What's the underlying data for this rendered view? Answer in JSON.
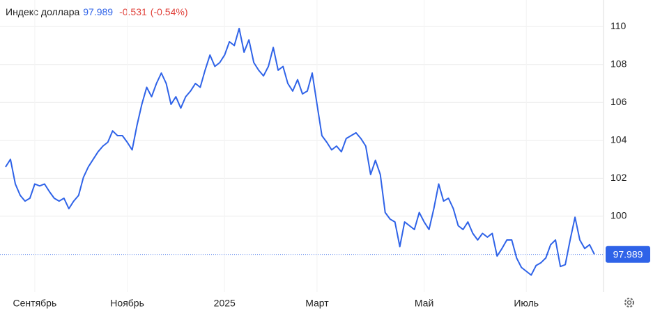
{
  "chart_data": {
    "type": "line",
    "title": "Индекс доллара",
    "change": "-0.531",
    "change_pct": "(-0.54%)",
    "series": [
      {
        "name": "Индекс доллара",
        "color": "#2f63e8",
        "values": [
          102.6,
          103.0,
          101.7,
          101.1,
          100.8,
          100.95,
          101.7,
          101.6,
          101.7,
          101.3,
          100.95,
          100.8,
          100.95,
          100.4,
          100.8,
          101.1,
          102.05,
          102.6,
          103.0,
          103.4,
          103.7,
          103.9,
          104.5,
          104.25,
          104.25,
          103.9,
          103.5,
          104.8,
          105.9,
          106.8,
          106.3,
          107.0,
          107.55,
          107.0,
          105.9,
          106.3,
          105.7,
          106.3,
          106.6,
          107.0,
          106.8,
          107.7,
          108.5,
          107.9,
          108.1,
          108.5,
          109.2,
          109.0,
          109.9,
          108.65,
          109.3,
          108.1,
          107.7,
          107.4,
          107.9,
          108.9,
          107.7,
          107.9,
          107.0,
          106.6,
          107.2,
          106.45,
          106.6,
          107.55,
          105.9,
          104.25,
          103.9,
          103.5,
          103.7,
          103.4,
          104.1,
          104.25,
          104.4,
          104.1,
          103.7,
          102.2,
          102.95,
          102.2,
          100.2,
          99.85,
          99.7,
          98.4,
          99.7,
          99.5,
          99.3,
          100.2,
          99.7,
          99.3,
          100.4,
          101.7,
          100.8,
          100.95,
          100.4,
          99.5,
          99.3,
          99.7,
          99.1,
          98.75,
          99.1,
          98.9,
          99.1,
          97.9,
          98.3,
          98.75,
          98.75,
          97.8,
          97.3,
          97.1,
          96.9,
          97.4,
          97.55,
          97.8,
          98.5,
          98.75,
          97.35,
          97.45,
          98.75,
          99.95,
          98.75,
          98.3,
          98.5,
          97.989
        ]
      }
    ],
    "xticks": [
      {
        "value": 6,
        "label": "Сентябрь"
      },
      {
        "value": 25,
        "label": "Ноябрь"
      },
      {
        "value": 45,
        "label": "2025"
      },
      {
        "value": 64,
        "label": "Март"
      },
      {
        "value": 86,
        "label": "Май"
      },
      {
        "value": 107,
        "label": "Июль"
      }
    ],
    "ylim": [
      96,
      111.4
    ],
    "yticks": [
      100,
      102,
      104,
      106,
      108,
      110
    ],
    "grid": true
  }
}
